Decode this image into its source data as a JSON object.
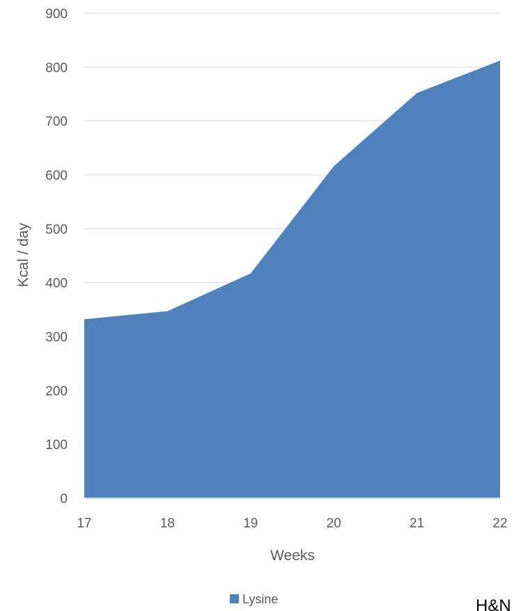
{
  "chart_data": {
    "type": "area",
    "x": [
      17,
      18,
      19,
      20,
      21,
      22
    ],
    "series": [
      {
        "name": "Lysine",
        "values": [
          332,
          347,
          417,
          616,
          752,
          812
        ],
        "color": "#4F81BD"
      }
    ],
    "xlabel": "Weeks",
    "ylabel": "Kcal / day",
    "xlim": [
      17,
      22
    ],
    "ylim": [
      0,
      900
    ],
    "yticks": [
      0,
      100,
      200,
      300,
      400,
      500,
      600,
      700,
      800,
      900
    ],
    "xticks": [
      17,
      18,
      19,
      20,
      21,
      22
    ],
    "grid": true,
    "legend_position": "bottom"
  },
  "corner_text": "H&N",
  "colors": {
    "gridline": "#D9D9D9",
    "baseline": "#BFD3EA",
    "tick_text": "#595959"
  }
}
